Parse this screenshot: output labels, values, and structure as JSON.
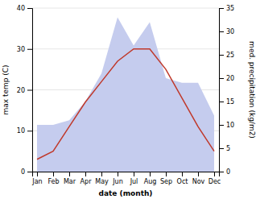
{
  "chart_data": {
    "type": "line",
    "categories": [
      "Jan",
      "Feb",
      "Mar",
      "Apr",
      "May",
      "Jun",
      "Jul",
      "Aug",
      "Sep",
      "Oct",
      "Nov",
      "Dec"
    ],
    "series": [
      {
        "type": "area",
        "color": "#c5ccee",
        "axis": "y2",
        "values": [
          10,
          10,
          11,
          15,
          21,
          33,
          27,
          32,
          20,
          19,
          19,
          12
        ]
      },
      {
        "type": "line",
        "color": "#c0392b",
        "values": [
          3,
          5,
          11,
          17,
          22,
          27,
          30,
          30,
          25,
          18,
          11,
          5
        ]
      }
    ],
    "x_label": "date (month)",
    "y_label": "max temp (C)",
    "y2_label": "med. precipitation (kg/m2)",
    "ylim": [
      0,
      40
    ],
    "yticks": [
      0,
      10,
      20,
      30,
      40
    ],
    "y2lim": [
      0,
      35
    ],
    "y2ticks": [
      0,
      5,
      10,
      15,
      20,
      25,
      30,
      35
    ],
    "grid": true
  }
}
